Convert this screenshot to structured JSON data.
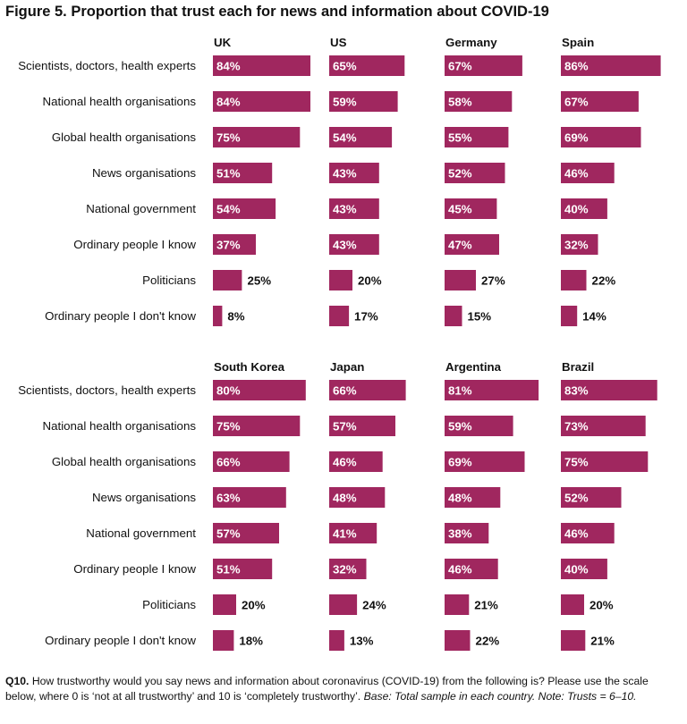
{
  "figure": {
    "title": "Figure 5. Proportion that trust each for news and information about COVID-19"
  },
  "footnote": {
    "label": "Q10.",
    "question": " How trustworthy would you say news and information about coronavirus (COVID-19) from the following is? Please use the scale below, where 0 is ‘not at all trustworthy’ and 10 is ‘completely trustworthy’. ",
    "base_note": "Base: Total sample in each country. Note: Trusts = 6–10."
  },
  "colors": {
    "bar": "#a0275f",
    "label_inside": "#ffffff",
    "label_outside": "#111111"
  },
  "chart_data": {
    "type": "bar",
    "orientation": "horizontal",
    "unit": "%",
    "categories": [
      "Scientists, doctors, health experts",
      "National health organisations",
      "Global health organisations",
      "News organisations",
      "National government",
      "Ordinary people I know",
      "Politicians",
      "Ordinary people I don't know"
    ],
    "xlim": [
      0,
      100
    ],
    "grid": false,
    "panels": [
      {
        "countries": [
          {
            "name": "UK",
            "values": [
              84,
              84,
              75,
              51,
              54,
              37,
              25,
              8
            ]
          },
          {
            "name": "US",
            "values": [
              65,
              59,
              54,
              43,
              43,
              43,
              20,
              17
            ]
          },
          {
            "name": "Germany",
            "values": [
              67,
              58,
              55,
              52,
              45,
              47,
              27,
              15
            ]
          },
          {
            "name": "Spain",
            "values": [
              86,
              67,
              69,
              46,
              40,
              32,
              22,
              14
            ]
          }
        ]
      },
      {
        "countries": [
          {
            "name": "South Korea",
            "values": [
              80,
              75,
              66,
              63,
              57,
              51,
              20,
              18
            ]
          },
          {
            "name": "Japan",
            "values": [
              66,
              57,
              46,
              48,
              41,
              32,
              24,
              13
            ]
          },
          {
            "name": "Argentina",
            "values": [
              81,
              59,
              69,
              48,
              38,
              46,
              21,
              22
            ]
          },
          {
            "name": "Brazil",
            "values": [
              83,
              73,
              75,
              52,
              46,
              40,
              20,
              21
            ]
          }
        ]
      }
    ]
  }
}
